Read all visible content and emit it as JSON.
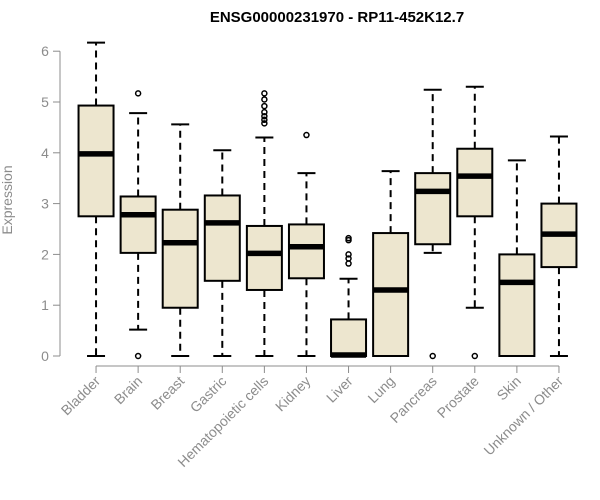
{
  "chart_data": {
    "type": "box",
    "title": "ENSG00000231970 - RP11-452K12.7",
    "xlabel": "",
    "ylabel": "Expression",
    "ylim": [
      0,
      6.2
    ],
    "yticks": [
      "0",
      "1",
      "2",
      "3",
      "4",
      "5",
      "6"
    ],
    "grid": false,
    "box_fill": "#ede6cf",
    "categories": [
      "Bladder",
      "Brain",
      "Breast",
      "Gastric",
      "Hematopoietic cells",
      "Kidney",
      "Liver",
      "Lung",
      "Pancreas",
      "Prostate",
      "Skin",
      "Unknown / Other"
    ],
    "boxes": [
      {
        "min": 0,
        "q1": 2.75,
        "median": 3.98,
        "q3": 4.93,
        "max": 6.17,
        "outliers": []
      },
      {
        "min": 0.52,
        "q1": 2.03,
        "median": 2.78,
        "q3": 3.14,
        "max": 4.78,
        "outliers": [
          0,
          5.17
        ]
      },
      {
        "min": 0,
        "q1": 0.95,
        "median": 2.23,
        "q3": 2.88,
        "max": 4.56,
        "outliers": []
      },
      {
        "min": 0,
        "q1": 1.48,
        "median": 2.62,
        "q3": 3.16,
        "max": 4.05,
        "outliers": []
      },
      {
        "min": 0,
        "q1": 1.3,
        "median": 2.02,
        "q3": 2.56,
        "max": 4.3,
        "outliers": [
          4.58,
          4.65,
          4.72,
          4.8,
          4.92,
          5.05,
          5.17
        ]
      },
      {
        "min": 0,
        "q1": 1.53,
        "median": 2.15,
        "q3": 2.59,
        "max": 3.6,
        "outliers": [
          4.35
        ]
      },
      {
        "min": 0,
        "q1": 0,
        "median": 0.02,
        "q3": 0.72,
        "max": 1.52,
        "outliers": [
          1.82,
          1.92,
          2.0,
          2.28,
          2.32
        ]
      },
      {
        "min": 0,
        "q1": 0,
        "median": 1.3,
        "q3": 2.42,
        "max": 3.64,
        "outliers": []
      },
      {
        "min": 2.03,
        "q1": 2.2,
        "median": 3.24,
        "q3": 3.6,
        "max": 5.24,
        "outliers": [
          0
        ]
      },
      {
        "min": 0.95,
        "q1": 2.75,
        "median": 3.54,
        "q3": 4.08,
        "max": 5.3,
        "outliers": [
          0
        ]
      },
      {
        "min": 0,
        "q1": 0,
        "median": 1.45,
        "q3": 2.0,
        "max": 3.85,
        "outliers": []
      },
      {
        "min": 0,
        "q1": 1.75,
        "median": 2.4,
        "q3": 3.0,
        "max": 4.32,
        "outliers": []
      }
    ]
  }
}
